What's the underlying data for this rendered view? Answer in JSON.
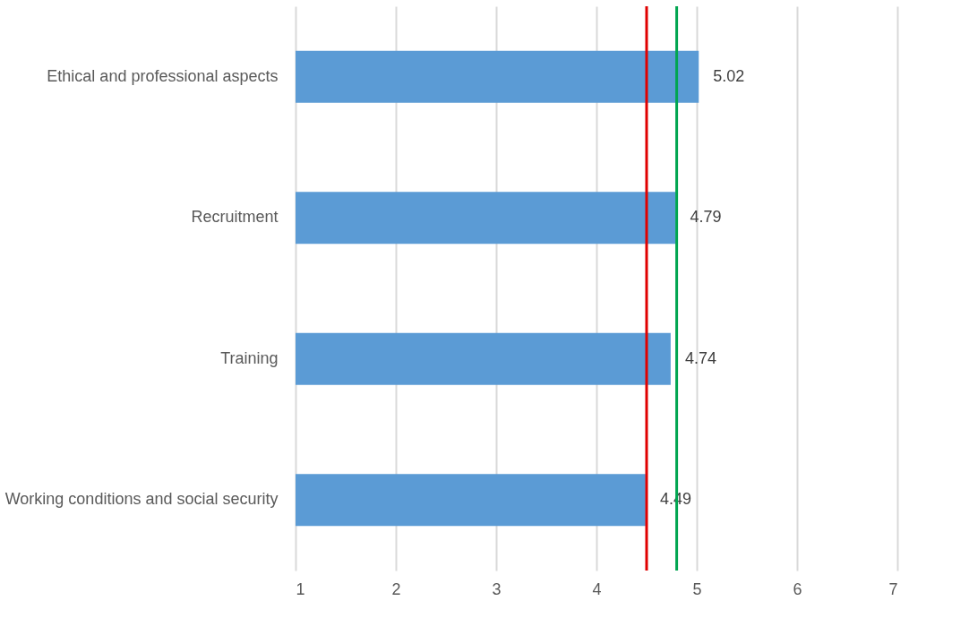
{
  "chart_data": {
    "type": "bar",
    "orientation": "horizontal",
    "categories": [
      "Ethical and professional aspects",
      "Recruitment",
      "Training",
      "Working conditions and social security"
    ],
    "values": [
      5.02,
      4.79,
      4.74,
      4.49
    ],
    "color": "#5b9bd5",
    "xlim": [
      1,
      7
    ],
    "xticks": [
      1,
      2,
      3,
      4,
      5,
      6,
      7
    ],
    "grid": "x",
    "data_labels": true,
    "ref_lines": [
      {
        "axis": "x",
        "value": 4.5,
        "color": "#e00000"
      },
      {
        "axis": "x",
        "value": 4.8,
        "color": "#00a550"
      }
    ]
  }
}
